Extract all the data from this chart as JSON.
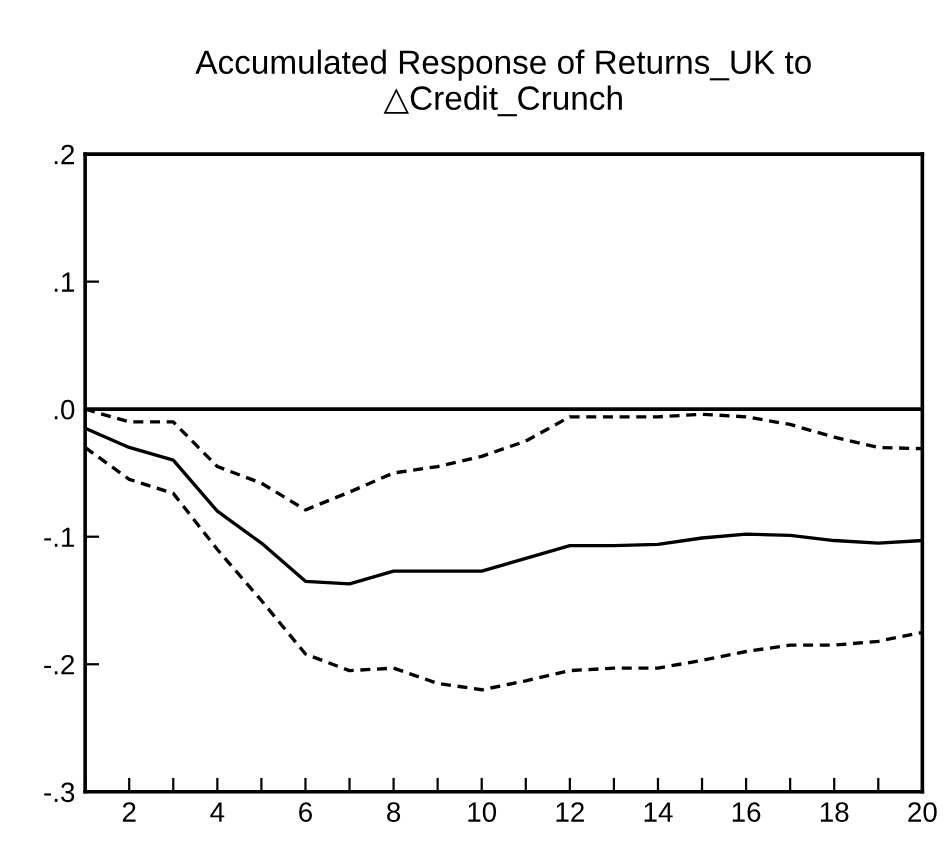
{
  "chart_data": {
    "type": "line",
    "title": "Accumulated Response of Returns_UK to\n△Credit_Crunch",
    "x": [
      1,
      2,
      3,
      4,
      5,
      6,
      7,
      8,
      9,
      10,
      11,
      12,
      13,
      14,
      15,
      16,
      17,
      18,
      19,
      20
    ],
    "series": [
      {
        "color": "#000000",
        "line_style": "solid",
        "values": [
          -0.015,
          -0.03,
          -0.04,
          -0.08,
          -0.105,
          -0.135,
          -0.137,
          -0.127,
          -0.127,
          -0.127,
          -0.117,
          -0.107,
          -0.107,
          -0.106,
          -0.101,
          -0.098,
          -0.099,
          -0.103,
          -0.105,
          -0.103
        ]
      },
      {
        "color": "#000000",
        "line_style": "dashed",
        "values": [
          0.0,
          -0.01,
          -0.01,
          -0.045,
          -0.058,
          -0.079,
          -0.065,
          -0.05,
          -0.045,
          -0.037,
          -0.025,
          -0.006,
          -0.006,
          -0.006,
          -0.004,
          -0.006,
          -0.012,
          -0.022,
          -0.03,
          -0.031
        ]
      },
      {
        "color": "#000000",
        "line_style": "dashed",
        "values": [
          -0.03,
          -0.055,
          -0.066,
          -0.11,
          -0.15,
          -0.192,
          -0.205,
          -0.203,
          -0.215,
          -0.22,
          -0.213,
          -0.205,
          -0.203,
          -0.203,
          -0.197,
          -0.19,
          -0.185,
          -0.185,
          -0.182,
          -0.175
        ]
      }
    ],
    "xlim": [
      1,
      20
    ],
    "xticks": [
      {
        "value": 1,
        "label": null
      },
      2,
      {
        "value": 3,
        "label": null
      },
      4,
      {
        "value": 5,
        "label": null
      },
      6,
      {
        "value": 7,
        "label": null
      },
      8,
      {
        "value": 9,
        "label": null
      },
      10,
      {
        "value": 11,
        "label": null
      },
      12,
      {
        "value": 13,
        "label": null
      },
      14,
      {
        "value": 15,
        "label": null
      },
      16,
      {
        "value": 17,
        "label": null
      },
      18,
      {
        "value": 19,
        "label": null
      },
      20
    ],
    "ylim": [
      -0.3,
      0.2
    ],
    "yticks": [
      {
        "value": 0.2,
        "label": ".2"
      },
      {
        "value": 0.1,
        "label": ".1"
      },
      {
        "value": 0.0,
        "label": ".0"
      },
      {
        "value": -0.1,
        "label": "-.1"
      },
      {
        "value": -0.2,
        "label": "-.2"
      },
      {
        "value": -0.3,
        "label": "-.3"
      }
    ],
    "ref_lines": [
      {
        "axis": "y",
        "value": 0,
        "color": "#000000",
        "line_style": "solid"
      }
    ],
    "grid": false,
    "legend": false
  }
}
